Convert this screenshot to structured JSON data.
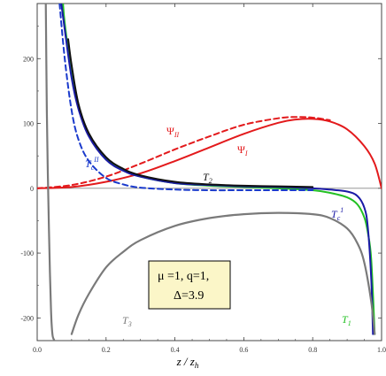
{
  "chart_data": {
    "type": "line",
    "xlabel": "z / z",
    "xlabel_sub": "h",
    "xlim": [
      0,
      1
    ],
    "ylim": [
      -235,
      285
    ],
    "x_ticks": [
      "0.0",
      "0.2",
      "0.4",
      "0.6",
      "0.8",
      "1.0"
    ],
    "y_ticks": [
      "200",
      "100",
      "0",
      "-100",
      "-200"
    ],
    "annotation": {
      "line1": "μ =1,  q=1,",
      "line2": "Δ=3.9"
    },
    "series": [
      {
        "key": "psi_I",
        "label": "Ψ",
        "label_sub": "I",
        "color": "#e31a1c",
        "dash": "solid",
        "x": [
          0.0,
          0.1,
          0.2,
          0.3,
          0.4,
          0.5,
          0.6,
          0.7,
          0.75,
          0.8,
          0.85,
          0.9,
          0.95,
          0.98,
          1.0
        ],
        "y": [
          0,
          2,
          10,
          23,
          42,
          63,
          84,
          101,
          106,
          107,
          103,
          91,
          65,
          38,
          0
        ]
      },
      {
        "key": "psi_II",
        "label": "Ψ",
        "label_sub": "II",
        "color": "#e31a1c",
        "dash": "dashed",
        "x": [
          0.0,
          0.1,
          0.2,
          0.3,
          0.4,
          0.5,
          0.6,
          0.7,
          0.75,
          0.8,
          0.85
        ],
        "y": [
          0,
          5,
          18,
          38,
          60,
          80,
          98,
          108,
          110,
          109,
          105
        ]
      },
      {
        "key": "T1",
        "label": "T",
        "label_sub": "1",
        "color": "#22c022",
        "dash": "solid",
        "x": [
          0.075,
          0.08,
          0.1,
          0.12,
          0.15,
          0.2,
          0.25,
          0.3,
          0.4,
          0.5,
          0.6,
          0.7,
          0.8,
          0.85,
          0.9,
          0.93,
          0.95,
          0.96,
          0.97,
          0.98
        ],
        "y": [
          285,
          255,
          175,
          125,
          82,
          45,
          28,
          18,
          8,
          4,
          2,
          0,
          -3,
          -7,
          -14,
          -25,
          -45,
          -68,
          -110,
          -225
        ]
      },
      {
        "key": "Tc1",
        "label": "T",
        "label_sub": "c",
        "label_sup": "1",
        "color": "#1a1aa6",
        "dash": "solid",
        "x": [
          0.07,
          0.08,
          0.1,
          0.12,
          0.15,
          0.2,
          0.25,
          0.3,
          0.4,
          0.5,
          0.6,
          0.7,
          0.8,
          0.85,
          0.9,
          0.93,
          0.95,
          0.96,
          0.97,
          0.975
        ],
        "y": [
          285,
          245,
          170,
          122,
          80,
          44,
          27,
          18,
          8,
          5,
          3,
          2,
          0,
          -2,
          -5,
          -12,
          -30,
          -60,
          -140,
          -225
        ]
      },
      {
        "key": "TcII",
        "label": "T",
        "label_sub": "c",
        "label_sup": "II",
        "color": "#1a3acc",
        "dash": "dashed",
        "x": [
          0.065,
          0.08,
          0.1,
          0.12,
          0.15,
          0.2,
          0.25,
          0.3,
          0.4,
          0.5,
          0.6,
          0.7,
          0.8
        ],
        "y": [
          285,
          200,
          120,
          75,
          42,
          16,
          6,
          1,
          -2,
          -3,
          -3,
          -3,
          -3
        ]
      },
      {
        "key": "T2",
        "label": "T",
        "label_sub": "2",
        "color": "#111111",
        "dash": "solid",
        "x": [
          0.09,
          0.1,
          0.12,
          0.15,
          0.2,
          0.25,
          0.3,
          0.4,
          0.5,
          0.6,
          0.7,
          0.8
        ],
        "y": [
          230,
          190,
          130,
          85,
          48,
          30,
          20,
          10,
          6,
          4,
          3,
          2
        ]
      },
      {
        "key": "T3",
        "label": "T",
        "label_sub": "3",
        "color": "#7a7a7a",
        "dash": "solid",
        "x": [
          0.025,
          0.028,
          0.031,
          0.034,
          0.037,
          0.04,
          0.042,
          0.045,
          0.05
        ],
        "y": [
          285,
          120,
          20,
          -60,
          -130,
          -185,
          -210,
          -228,
          -235
        ]
      },
      {
        "key": "T3b",
        "label": "",
        "label_sub": "",
        "color": "#7a7a7a",
        "dash": "solid",
        "x": [
          0.1,
          0.12,
          0.15,
          0.2,
          0.25,
          0.3,
          0.4,
          0.5,
          0.6,
          0.7,
          0.8,
          0.85,
          0.9,
          0.93,
          0.95,
          0.97,
          0.98
        ],
        "y": [
          -225,
          -195,
          -163,
          -122,
          -98,
          -80,
          -58,
          -46,
          -40,
          -38,
          -40,
          -46,
          -62,
          -85,
          -115,
          -175,
          -225
        ]
      }
    ]
  }
}
